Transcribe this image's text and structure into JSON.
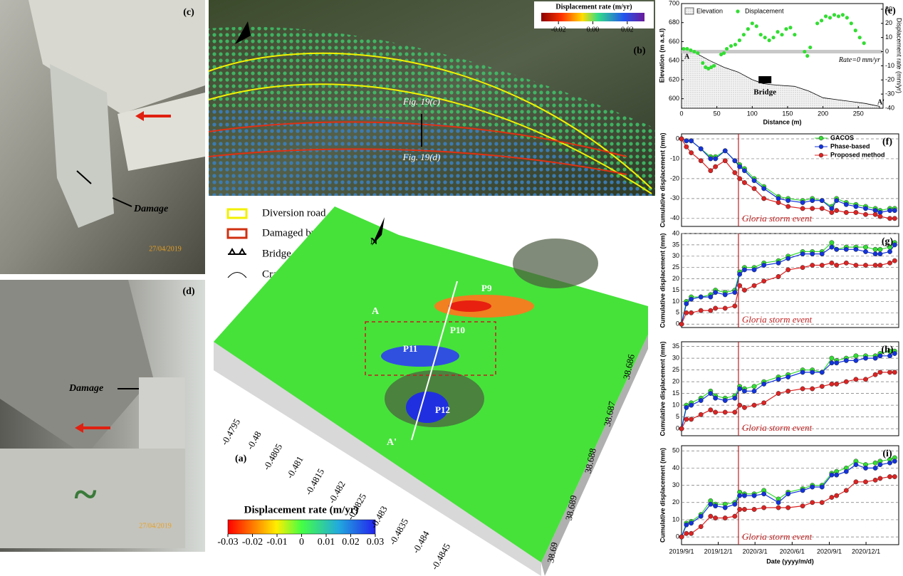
{
  "photos": {
    "c": {
      "label": "(c)",
      "annotation": "Damage",
      "date": "27/04/2019"
    },
    "d": {
      "label": "(d)",
      "annotation": "Damage",
      "date": "27/04/2019"
    }
  },
  "map_b": {
    "label": "(b)",
    "fig_c": "Fig. 19(c)",
    "fig_d": "Fig. 19(d)",
    "colorbar": {
      "title": "Displacement rate (m/yr)",
      "lim": [
        -0.03,
        0.03
      ],
      "ticks": [
        -0.02,
        {
          "value": 0,
          "label": "0.00"
        },
        0.02
      ]
    }
  },
  "legend": [
    "Diversion road",
    "Damaged bridge",
    "Bridge pier",
    "Cracks"
  ],
  "map_a": {
    "label": "(a)",
    "north": "N",
    "profile_start": "A",
    "profile_end": "A'",
    "points": [
      "P9",
      "P10",
      "P11",
      "P12"
    ],
    "lon_labels": [
      "-0.4795",
      "-0.48",
      "-0.4805",
      "-0.481",
      "-0.4815",
      "-0.482",
      "-0.4825",
      "-0.483",
      "-0.4835",
      "-0.484",
      "-0.4845"
    ],
    "lat_labels": [
      "38.686",
      "38.687",
      "38.688",
      "38.689",
      "38.69"
    ],
    "colorbar": {
      "title": "Displacement rate (m/yr)",
      "lim": [
        -0.03,
        0.03
      ],
      "ticks": [
        -0.03,
        -0.02,
        -0.01,
        0,
        0.01,
        0.02,
        0.03
      ]
    }
  },
  "chart_data": [
    {
      "type": "profile",
      "panel_label": "(e)",
      "xlabel": "Distance (m)",
      "ylabel": "Elevation (m a.s.l)",
      "y2label": "Displacement rate (mm/yr)",
      "xlim": [
        0,
        285
      ],
      "xticks": [
        0,
        50,
        100,
        150,
        200,
        250
      ],
      "ylim": [
        590,
        700
      ],
      "yticks": [
        600,
        620,
        640,
        660,
        680,
        700
      ],
      "y2lim": [
        -40,
        34
      ],
      "y2ticks": [
        -40,
        -30,
        -20,
        -10,
        0,
        10,
        20,
        30
      ],
      "reference_lines": [
        {
          "value": 0,
          "axis": "y2",
          "label": "Rate=0 mm/yr"
        }
      ],
      "annotations": [
        {
          "x": 118,
          "label": "Bridge"
        }
      ],
      "profile_start": "A",
      "profile_end": "A'",
      "series": [
        {
          "name": "Elevation",
          "style": "area",
          "color": "#999999",
          "x": [
            0,
            20,
            40,
            60,
            80,
            100,
            115,
            125,
            140,
            160,
            180,
            200,
            220,
            240,
            260,
            280
          ],
          "values": [
            652,
            648,
            640,
            633,
            628,
            620,
            616,
            615,
            614,
            613,
            608,
            601,
            599,
            597,
            595,
            592
          ]
        },
        {
          "name": "Displacement",
          "style": "scatter",
          "axis": "y2",
          "color": "#33dd33",
          "x": [
            3,
            8,
            13,
            18,
            23,
            30,
            34,
            38,
            42,
            46,
            56,
            60,
            64,
            70,
            76,
            82,
            88,
            94,
            100,
            106,
            112,
            118,
            124,
            130,
            136,
            142,
            148,
            154,
            160,
            174,
            178,
            182,
            192,
            198,
            204,
            210,
            216,
            222,
            228,
            234,
            240,
            246,
            252,
            258
          ],
          "values": [
            2,
            2,
            1,
            0,
            -1,
            -8,
            -11,
            -12,
            -11,
            -10,
            -2,
            -1,
            2,
            4,
            5,
            8,
            12,
            16,
            20,
            18,
            12,
            10,
            8,
            10,
            14,
            12,
            16,
            17,
            12,
            0,
            -3,
            3,
            20,
            22,
            25,
            24,
            26,
            25,
            26,
            24,
            20,
            15,
            10,
            6
          ]
        }
      ]
    },
    {
      "type": "line",
      "panel_label": "(f)",
      "ylabel": "Cumulative displacement (mm)",
      "grid": true,
      "x": [
        "2019/9/1",
        "2019/9/13",
        "2019/9/25",
        "2019/10/19",
        "2019/11/12",
        "2019/11/24",
        "2019/12/18",
        "2020/1/11",
        "2020/1/23",
        "2020/2/4",
        "2020/2/28",
        "2020/3/23",
        "2020/4/28",
        "2020/5/22",
        "2020/6/27",
        "2020/7/21",
        "2020/8/14",
        "2020/9/7",
        "2020/9/19",
        "2020/10/13",
        "2020/11/6",
        "2020/11/30",
        "2020/12/24",
        "2021/1/5",
        "2021/1/29",
        "2021/2/10"
      ],
      "xlim": [
        "2019/9/1",
        "2021/2/20"
      ],
      "ylim": [
        -44,
        2.5
      ],
      "yticks": [
        -40,
        -30,
        -20,
        -10,
        0
      ],
      "events": [
        {
          "x": "2020/1/20",
          "label": "Gloria storm event"
        }
      ],
      "series": [
        {
          "name": "GACOS",
          "color": "#33dd33",
          "values": [
            0,
            -1,
            -1,
            -5,
            -9,
            -9,
            -6,
            -11,
            -13,
            -15,
            -20,
            -24,
            -29,
            -30,
            -31,
            -30,
            -31,
            -34,
            -30,
            -32,
            -33,
            -34,
            -35,
            -36,
            -35,
            -35
          ]
        },
        {
          "name": "Phase-based",
          "color": "#1133dd",
          "values": [
            0,
            -1,
            -1,
            -5,
            -10,
            -10,
            -6,
            -11,
            -14,
            -16,
            -21,
            -25,
            -30,
            -31,
            -32,
            -31,
            -31,
            -35,
            -31,
            -33,
            -34,
            -35,
            -36,
            -37,
            -36,
            -36
          ]
        },
        {
          "name": "Proposed method",
          "color": "#dd2222",
          "values": [
            0,
            -4,
            -7,
            -11,
            -16,
            -14,
            -11,
            -17,
            -20,
            -22,
            -25,
            -30,
            -32,
            -34,
            -35,
            -35,
            -35,
            -37,
            -36,
            -37,
            -37,
            -38,
            -38,
            -39,
            -40,
            -40
          ]
        }
      ]
    },
    {
      "type": "line",
      "panel_label": "(g)",
      "ylabel": "Cumulative displacement (mm)",
      "grid": true,
      "x": [
        "2019/9/1",
        "2019/9/13",
        "2019/9/25",
        "2019/10/19",
        "2019/11/12",
        "2019/11/24",
        "2019/12/18",
        "2020/1/11",
        "2020/1/23",
        "2020/2/4",
        "2020/2/28",
        "2020/3/23",
        "2020/4/28",
        "2020/5/22",
        "2020/6/27",
        "2020/7/21",
        "2020/8/14",
        "2020/9/7",
        "2020/9/19",
        "2020/10/13",
        "2020/11/6",
        "2020/11/30",
        "2020/12/24",
        "2021/1/5",
        "2021/1/29",
        "2021/2/10"
      ],
      "xlim": [
        "2019/9/1",
        "2021/2/20"
      ],
      "ylim": [
        -1.5,
        40
      ],
      "yticks": [
        0,
        5,
        10,
        15,
        20,
        25,
        30,
        35,
        40
      ],
      "events": [
        {
          "x": "2020/1/20",
          "label": "Gloria storm event"
        }
      ],
      "series": [
        {
          "color": "#33dd33",
          "values": [
            0,
            10,
            12,
            12,
            13,
            15,
            14,
            15,
            23,
            25,
            25,
            27,
            28,
            30,
            32,
            32,
            32,
            36,
            33,
            34,
            34,
            34,
            33,
            33,
            34,
            36
          ]
        },
        {
          "color": "#1133dd",
          "values": [
            0,
            9,
            11,
            12,
            12,
            14,
            13,
            14,
            22,
            24,
            24,
            26,
            27,
            29,
            31,
            31,
            31,
            34,
            33,
            33,
            33,
            32,
            31,
            31,
            32,
            35
          ]
        },
        {
          "color": "#dd2222",
          "values": [
            0,
            5,
            5,
            6,
            6,
            7,
            7,
            8,
            17,
            15,
            17,
            19,
            21,
            24,
            25,
            26,
            26,
            27,
            26,
            27,
            26,
            26,
            26,
            26,
            27,
            28
          ]
        }
      ]
    },
    {
      "type": "line",
      "panel_label": "(h)",
      "ylabel": "Cumulative displacement (mm)",
      "grid": true,
      "x": [
        "2019/9/1",
        "2019/9/13",
        "2019/9/25",
        "2019/10/19",
        "2019/11/12",
        "2019/11/24",
        "2019/12/18",
        "2020/1/11",
        "2020/1/23",
        "2020/2/4",
        "2020/2/28",
        "2020/3/23",
        "2020/4/28",
        "2020/5/22",
        "2020/6/27",
        "2020/7/21",
        "2020/8/14",
        "2020/9/7",
        "2020/9/19",
        "2020/10/13",
        "2020/11/6",
        "2020/11/30",
        "2020/12/24",
        "2021/1/5",
        "2021/1/29",
        "2021/2/10"
      ],
      "xlim": [
        "2019/9/1",
        "2021/2/20"
      ],
      "ylim": [
        -3,
        37
      ],
      "yticks": [
        0,
        5,
        10,
        15,
        20,
        25,
        30,
        35
      ],
      "events": [
        {
          "x": "2020/1/20",
          "label": "Gloria storm event"
        }
      ],
      "series": [
        {
          "color": "#33dd33",
          "values": [
            0,
            10,
            11,
            13,
            16,
            14,
            13,
            14,
            18,
            17,
            18,
            20,
            22,
            23,
            25,
            25,
            24,
            30,
            29,
            30,
            31,
            31,
            31,
            32,
            33,
            33
          ]
        },
        {
          "color": "#1133dd",
          "values": [
            0,
            9,
            10,
            12,
            15,
            13,
            12,
            13,
            17,
            16,
            16,
            19,
            21,
            22,
            24,
            24,
            24,
            28,
            28,
            29,
            29,
            30,
            30,
            31,
            31,
            32
          ]
        },
        {
          "color": "#dd2222",
          "values": [
            0,
            4,
            4,
            6,
            8,
            7,
            7,
            7,
            10,
            9,
            10,
            11,
            15,
            16,
            17,
            17,
            18,
            19,
            19,
            20,
            21,
            21,
            23,
            24,
            24,
            24
          ]
        }
      ]
    },
    {
      "type": "line",
      "panel_label": "(i)",
      "ylabel": "Cumulative displacement (mm)",
      "xlabel": "Date (yyyy/m/d)",
      "grid": true,
      "x": [
        "2019/9/1",
        "2019/9/13",
        "2019/9/25",
        "2019/10/19",
        "2019/11/12",
        "2019/11/24",
        "2019/12/18",
        "2020/1/11",
        "2020/1/23",
        "2020/2/4",
        "2020/2/28",
        "2020/3/23",
        "2020/4/28",
        "2020/5/22",
        "2020/6/27",
        "2020/7/21",
        "2020/8/14",
        "2020/9/7",
        "2020/9/19",
        "2020/10/13",
        "2020/11/6",
        "2020/11/30",
        "2020/12/24",
        "2021/1/5",
        "2021/1/29",
        "2021/2/10"
      ],
      "xlim": [
        "2019/9/1",
        "2021/2/20"
      ],
      "xticks": [
        "2019/9/1",
        "2019/12/1",
        "2020/3/1",
        "2020/6/1",
        "2020/9/1",
        "2020/12/1"
      ],
      "ylim": [
        -4.5,
        53
      ],
      "yticks": [
        0,
        10,
        20,
        30,
        40,
        50
      ],
      "events": [
        {
          "x": "2020/1/20",
          "label": "Gloria storm event"
        }
      ],
      "series": [
        {
          "color": "#33dd33",
          "values": [
            0,
            8,
            9,
            13,
            21,
            19,
            19,
            20,
            26,
            25,
            25,
            27,
            22,
            26,
            28,
            30,
            30,
            37,
            38,
            40,
            44,
            42,
            43,
            44,
            45,
            46
          ]
        },
        {
          "color": "#1133dd",
          "values": [
            0,
            7,
            8,
            12,
            19,
            18,
            17,
            19,
            24,
            24,
            24,
            25,
            20,
            25,
            27,
            29,
            29,
            36,
            36,
            38,
            42,
            40,
            40,
            42,
            43,
            44
          ]
        },
        {
          "color": "#dd2222",
          "values": [
            0,
            2,
            2,
            6,
            12,
            11,
            11,
            12,
            16,
            16,
            16,
            17,
            17,
            17,
            18,
            20,
            20,
            23,
            24,
            27,
            32,
            32,
            33,
            34,
            35,
            35
          ]
        }
      ]
    }
  ]
}
